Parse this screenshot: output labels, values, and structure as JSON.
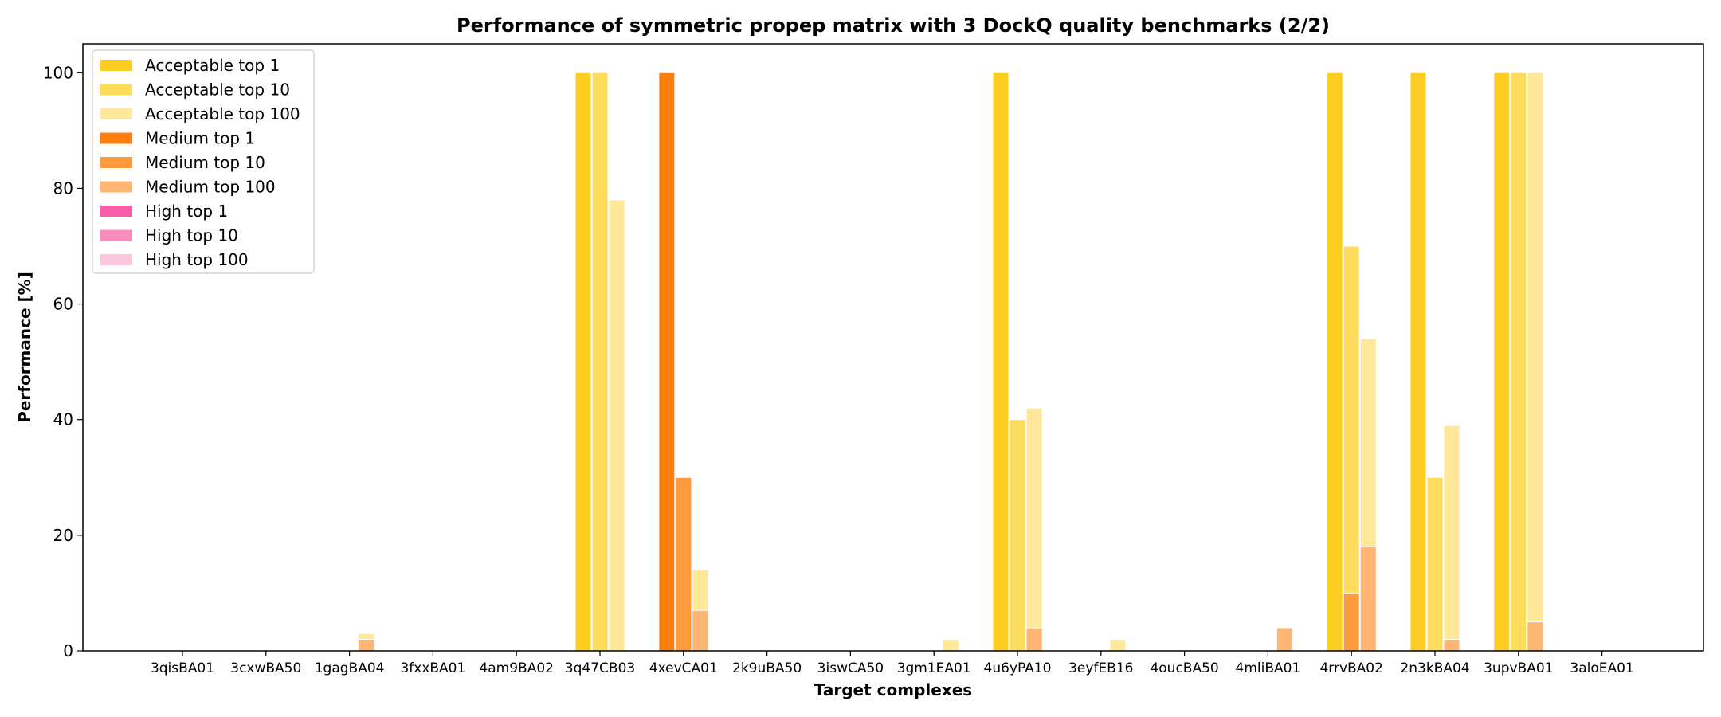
{
  "chart_data": {
    "type": "bar",
    "title": "Performance of symmetric propep matrix with 3 DockQ quality benchmarks (2/2)",
    "xlabel": "Target complexes",
    "ylabel": "Performance [%]",
    "ylim": [
      0,
      105
    ],
    "yticks": [
      "0",
      "20",
      "40",
      "60",
      "80",
      "100"
    ],
    "grid": false,
    "legend_position": "top-left",
    "categories": [
      "3qisBA01",
      "3cxwBA50",
      "1gagBA04",
      "3fxxBA01",
      "4am9BA02",
      "3q47CB03",
      "4xevCA01",
      "2k9uBA50",
      "3iswCA50",
      "3gm1EA01",
      "4u6yPA10",
      "3eyfEB16",
      "4oucBA50",
      "4mliBA01",
      "4rrvBA02",
      "2n3kBA04",
      "3upvBA01",
      "3aloEA01"
    ],
    "series": [
      {
        "name": "Acceptable top 1",
        "color": "#ffcc22",
        "group": 0,
        "values": [
          0,
          0,
          0,
          0,
          0,
          100,
          0,
          0,
          0,
          0,
          100,
          0,
          0,
          0,
          100,
          100,
          100,
          0
        ]
      },
      {
        "name": "Acceptable top 10",
        "color": "#ffdb5c",
        "group": 1,
        "values": [
          0,
          0,
          0,
          0,
          0,
          100,
          0,
          0,
          0,
          0,
          40,
          0,
          0,
          0,
          70,
          30,
          100,
          0
        ]
      },
      {
        "name": "Acceptable top 100",
        "color": "#ffe899",
        "group": 2,
        "values": [
          0,
          0,
          3,
          0,
          0,
          78,
          14,
          0,
          0,
          2,
          42,
          2,
          0,
          0,
          54,
          39,
          100,
          0
        ]
      },
      {
        "name": "Medium top 1",
        "color": "#ff7f0e",
        "group": 0,
        "values": [
          0,
          0,
          0,
          0,
          0,
          0,
          100,
          0,
          0,
          0,
          0,
          0,
          0,
          0,
          0,
          0,
          0,
          0
        ]
      },
      {
        "name": "Medium top 10",
        "color": "#ff9a3c",
        "group": 1,
        "values": [
          0,
          0,
          0,
          0,
          0,
          0,
          30,
          0,
          0,
          0,
          0,
          0,
          0,
          0,
          10,
          0,
          0,
          0
        ]
      },
      {
        "name": "Medium top 100",
        "color": "#ffb574",
        "group": 2,
        "values": [
          0,
          0,
          2,
          0,
          0,
          0,
          7,
          0,
          0,
          0,
          4,
          0,
          0,
          4,
          18,
          2,
          5,
          0
        ]
      },
      {
        "name": "High top 1",
        "color": "#f760a6",
        "group": 0,
        "values": [
          0,
          0,
          0,
          0,
          0,
          0,
          0,
          0,
          0,
          0,
          0,
          0,
          0,
          0,
          0,
          0,
          0,
          0
        ]
      },
      {
        "name": "High top 10",
        "color": "#fa8cbf",
        "group": 1,
        "values": [
          0,
          0,
          0,
          0,
          0,
          0,
          0,
          0,
          0,
          0,
          0,
          0,
          0,
          0,
          0,
          0,
          0,
          0
        ]
      },
      {
        "name": "High top 100",
        "color": "#fcc7dc",
        "group": 2,
        "values": [
          0,
          0,
          0,
          0,
          0,
          0,
          0,
          0,
          0,
          0,
          0,
          0,
          0,
          0,
          0,
          0,
          0,
          0
        ]
      }
    ]
  }
}
